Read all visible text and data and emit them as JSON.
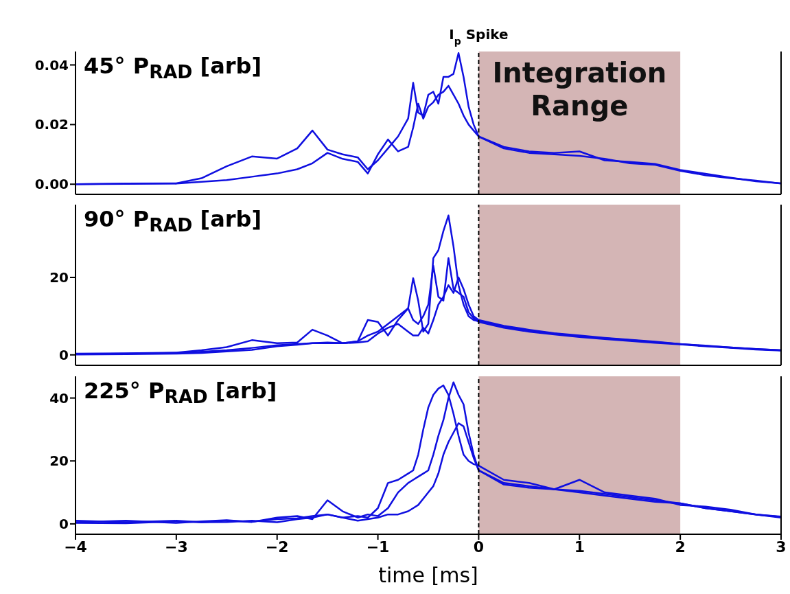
{
  "chart_data": [
    {
      "type": "line",
      "title": "45° P$_{RAD}$ [arb]",
      "tick_labels": "y",
      "x": [
        -4,
        -3.5,
        -3,
        -2.75,
        -2.5,
        -2.25,
        -2,
        -1.8,
        -1.65,
        -1.5,
        -1.35,
        -1.2,
        -1.1,
        -1,
        -0.9,
        -0.8,
        -0.7,
        -0.65,
        -0.6,
        -0.55,
        -0.5,
        -0.45,
        -0.4,
        -0.35,
        -0.3,
        -0.25,
        -0.2,
        -0.15,
        -0.1,
        -0.05,
        0,
        0.25,
        0.5,
        0.75,
        1,
        1.25,
        1.5,
        1.75,
        2,
        2.25,
        2.5,
        2.75,
        3
      ],
      "series": [
        {
          "color": "#0f0fe0",
          "values": [
            0,
            0.0002,
            0.0003,
            0.002,
            0.006,
            0.0093,
            0.0086,
            0.012,
            0.018,
            0.0116,
            0.01,
            0.009,
            0.005,
            0.008,
            0.012,
            0.016,
            0.022,
            0.034,
            0.024,
            0.023,
            0.03,
            0.031,
            0.027,
            0.036,
            0.036,
            0.037,
            0.044,
            0.036,
            0.026,
            0.02,
            0.016,
            0.0125,
            0.011,
            0.0105,
            0.011,
            0.008,
            0.0075,
            0.0068,
            0.0048,
            0.0035,
            0.0022,
            0.001,
            0.0003
          ]
        },
        {
          "color": "#0f0fe0",
          "values": [
            0,
            0.0001,
            0.0002,
            0.0008,
            0.0014,
            0.0025,
            0.0036,
            0.005,
            0.007,
            0.0105,
            0.0085,
            0.0075,
            0.0036,
            0.01,
            0.015,
            0.011,
            0.0125,
            0.019,
            0.027,
            0.022,
            0.026,
            0.0275,
            0.03,
            0.031,
            0.033,
            0.03,
            0.027,
            0.023,
            0.02,
            0.018,
            0.016,
            0.012,
            0.0105,
            0.01,
            0.0095,
            0.0085,
            0.007,
            0.0065,
            0.0045,
            0.003,
            0.002,
            0.0012,
            0.0002
          ]
        }
      ],
      "xlim": [
        -4,
        3
      ],
      "xticks": [
        -4,
        -3,
        -2,
        -1,
        0,
        1,
        2,
        3
      ],
      "ylim": [
        -0.0034,
        0.0445
      ],
      "yticks": [
        {
          "value": 0,
          "label": "0.00"
        },
        {
          "value": 0.02,
          "label": "0.02"
        },
        {
          "value": 0.04,
          "label": "0.04"
        }
      ],
      "ref_lines": [
        {
          "axis": "x",
          "value": 0,
          "label": "I$_{p}$ Spike",
          "color": "#000000",
          "line_style": "dashed"
        }
      ],
      "bands": [
        {
          "axis": "x",
          "from": 0,
          "to": 2,
          "label": "Integration Range",
          "color": "#a05a5a"
        }
      ]
    },
    {
      "type": "line",
      "title": "90° P$_{RAD}$ [arb]",
      "tick_labels": "y",
      "x": [
        -4,
        -3.5,
        -3,
        -2.75,
        -2.5,
        -2.25,
        -2,
        -1.8,
        -1.65,
        -1.5,
        -1.35,
        -1.2,
        -1.1,
        -1,
        -0.9,
        -0.8,
        -0.7,
        -0.65,
        -0.6,
        -0.55,
        -0.5,
        -0.45,
        -0.4,
        -0.35,
        -0.3,
        -0.25,
        -0.2,
        -0.15,
        -0.1,
        -0.05,
        0,
        0.25,
        0.5,
        0.75,
        1,
        1.25,
        1.5,
        1.75,
        2,
        2.25,
        2.5,
        2.75,
        3
      ],
      "series": [
        {
          "color": "#0f0fe0",
          "values": [
            0.3,
            0.4,
            0.6,
            1.2,
            2,
            3.8,
            3,
            3.2,
            6.5,
            5,
            3,
            3.5,
            9,
            8.5,
            5,
            9,
            12,
            19.8,
            14,
            6,
            8,
            25,
            27,
            32,
            36,
            28,
            18,
            13,
            10,
            9,
            8.7,
            7.2,
            6.3,
            5.5,
            4.8,
            4.3,
            3.8,
            3.3,
            2.8,
            2.3,
            1.9,
            1.5,
            1.2
          ]
        },
        {
          "color": "#0f0fe0",
          "values": [
            0.2,
            0.3,
            0.5,
            0.8,
            1.2,
            1.8,
            2.5,
            2.8,
            3,
            3,
            3,
            3.5,
            5,
            6,
            8,
            10,
            12,
            9,
            8,
            10,
            13,
            23,
            15,
            14,
            25,
            17,
            16,
            15,
            11,
            9.5,
            8.5,
            7,
            6,
            5.3,
            4.6,
            4.1,
            3.6,
            3.1,
            2.7,
            2.2,
            1.8,
            1.4,
            1.1
          ]
        },
        {
          "color": "#0f0fe0",
          "values": [
            0.1,
            0.2,
            0.3,
            0.5,
            0.9,
            1.3,
            2.2,
            2.6,
            3,
            3.2,
            3,
            3.2,
            3.5,
            5.5,
            7,
            8,
            6,
            5,
            5,
            7,
            5.5,
            9,
            13,
            15,
            18,
            16,
            20,
            17,
            13,
            10,
            9,
            7.5,
            6.5,
            5.6,
            5,
            4.4,
            3.9,
            3.4,
            2.8,
            2.4,
            1.9,
            1.5,
            1.2
          ]
        }
      ],
      "xlim": [
        -4,
        3
      ],
      "xticks": [
        -4,
        -3,
        -2,
        -1,
        0,
        1,
        2,
        3
      ],
      "ylim": [
        -2.7,
        38.8
      ],
      "yticks": [
        0,
        20
      ],
      "ref_lines": [
        {
          "axis": "x",
          "value": 0,
          "color": "#000000",
          "line_style": "dashed"
        }
      ],
      "bands": [
        {
          "axis": "x",
          "from": 0,
          "to": 2,
          "color": "#a05a5a"
        }
      ]
    },
    {
      "type": "line",
      "title": "225° P$_{RAD}$ [arb]",
      "xlabel": "time [ms]",
      "x": [
        -4,
        -3.5,
        -3,
        -2.75,
        -2.5,
        -2.25,
        -2,
        -1.8,
        -1.65,
        -1.5,
        -1.35,
        -1.2,
        -1.1,
        -1,
        -0.9,
        -0.8,
        -0.7,
        -0.65,
        -0.6,
        -0.55,
        -0.5,
        -0.45,
        -0.4,
        -0.35,
        -0.3,
        -0.25,
        -0.2,
        -0.15,
        -0.1,
        -0.05,
        0,
        0.25,
        0.5,
        0.75,
        1,
        1.25,
        1.5,
        1.75,
        2,
        2.25,
        2.5,
        2.75,
        3
      ],
      "series": [
        {
          "color": "#0f0fe0",
          "values": [
            1,
            0.5,
            1,
            0.5,
            1,
            0.7,
            1.5,
            1.8,
            2.5,
            3,
            2,
            2.5,
            2,
            5,
            13,
            14,
            16,
            17,
            22,
            30,
            37,
            41,
            43,
            44,
            41,
            35,
            28,
            22,
            20,
            19,
            18.5,
            14,
            13,
            11,
            10.5,
            9.5,
            8.5,
            7.5,
            6.5,
            5,
            4,
            3,
            2
          ]
        },
        {
          "color": "#0f0fe0",
          "values": [
            0.5,
            1,
            0.3,
            0.8,
            1.2,
            0.6,
            2,
            2.5,
            1.5,
            7.5,
            4,
            2,
            3,
            2.5,
            5,
            10,
            13,
            14,
            15,
            16,
            17,
            22,
            28,
            33,
            40,
            45,
            41,
            38,
            29,
            22,
            17,
            12.5,
            11.5,
            11,
            14,
            10,
            9,
            8,
            6,
            5.5,
            4.5,
            3,
            2.2
          ]
        },
        {
          "color": "#0f0fe0",
          "values": [
            0.3,
            0.2,
            0.8,
            0.5,
            0.6,
            1,
            0.5,
            1.5,
            2,
            3,
            2,
            1,
            1.5,
            2,
            3,
            3,
            4,
            5,
            6,
            8,
            10,
            12,
            16,
            22,
            26,
            29,
            32,
            31,
            26,
            21,
            17,
            13,
            12,
            11,
            10,
            9,
            8,
            7,
            6.5,
            5,
            4,
            3,
            2.3
          ]
        }
      ],
      "xlim": [
        -4,
        3
      ],
      "xticks": [
        {
          "value": -4,
          "label": "−4"
        },
        {
          "value": -3,
          "label": "−3"
        },
        {
          "value": -2,
          "label": "−2"
        },
        {
          "value": -1,
          "label": "−1"
        },
        0,
        1,
        2,
        3
      ],
      "ylim": [
        -3.3,
        46.9
      ],
      "yticks": [
        0,
        20,
        40
      ],
      "ref_lines": [
        {
          "axis": "x",
          "value": 0,
          "color": "#000000",
          "line_style": "dashed"
        }
      ],
      "bands": [
        {
          "axis": "x",
          "from": 0,
          "to": 2,
          "color": "#a05a5a"
        }
      ]
    }
  ]
}
